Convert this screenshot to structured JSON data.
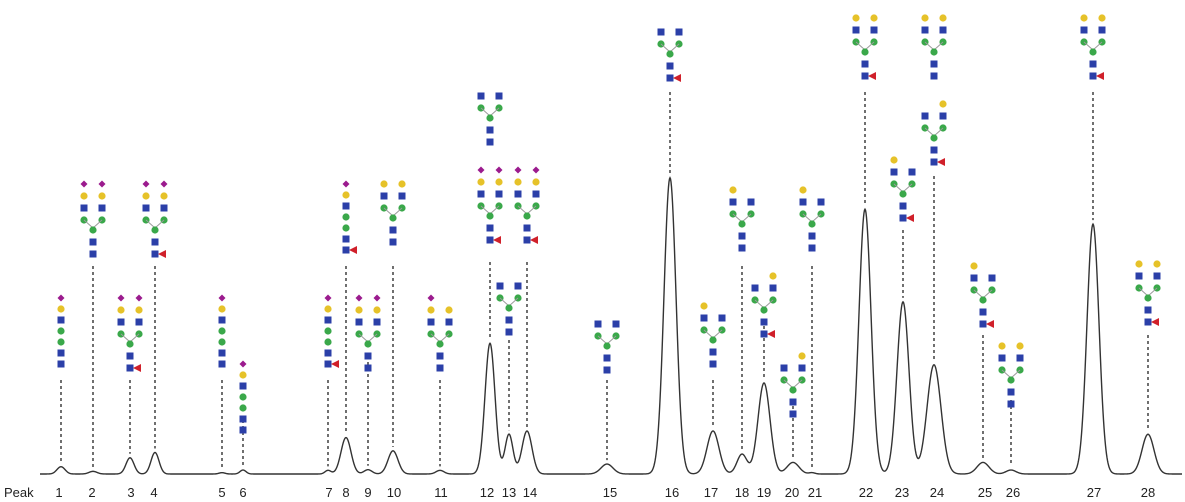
{
  "chart_data": {
    "type": "line",
    "title": "",
    "xlabel": "",
    "ylabel": "",
    "axis_prefix": "Peak",
    "grid": false,
    "legend": "none",
    "colors": {
      "trace": "#333333",
      "glcnac_square": "#2b3fa8",
      "mannose_circle": "#3aa84a",
      "galactose_circle": "#e6c229",
      "sialic_diamond": "#9b1b8e",
      "fucose_triangle": "#d0202a",
      "guide_line": "#222222"
    },
    "peaks": [
      {
        "label": "1",
        "height": 0.022
      },
      {
        "label": "2",
        "height": 0.008
      },
      {
        "label": "3",
        "height": 0.049
      },
      {
        "label": "4",
        "height": 0.065
      },
      {
        "label": "5",
        "height": 0.004
      },
      {
        "label": "6",
        "height": 0.012
      },
      {
        "label": "7",
        "height": 0.011
      },
      {
        "label": "8",
        "height": 0.11
      },
      {
        "label": "9",
        "height": 0.013
      },
      {
        "label": "10",
        "height": 0.07
      },
      {
        "label": "11",
        "height": 0.011
      },
      {
        "label": "12",
        "height": 0.395
      },
      {
        "label": "13",
        "height": 0.12
      },
      {
        "label": "14",
        "height": 0.13
      },
      {
        "label": "15",
        "height": 0.03
      },
      {
        "label": "16",
        "height": 0.895
      },
      {
        "label": "17",
        "height": 0.13
      },
      {
        "label": "18",
        "height": 0.06
      },
      {
        "label": "19",
        "height": 0.275
      },
      {
        "label": "20",
        "height": 0.035
      },
      {
        "label": "21",
        "height": 0.004
      },
      {
        "label": "22",
        "height": 0.8
      },
      {
        "label": "23",
        "height": 0.52
      },
      {
        "label": "24",
        "height": 0.33
      },
      {
        "label": "25",
        "height": 0.035
      },
      {
        "label": "26",
        "height": 0.012
      },
      {
        "label": "27",
        "height": 0.755
      },
      {
        "label": "28",
        "height": 0.12
      }
    ]
  }
}
